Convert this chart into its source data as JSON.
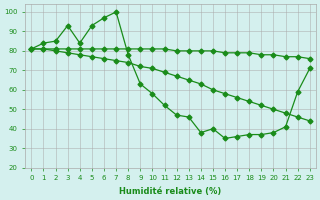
{
  "line1": [
    81,
    84,
    85,
    93,
    84,
    93,
    97,
    100,
    78,
    63,
    58,
    52,
    47,
    46,
    38,
    40,
    35,
    36,
    37,
    37,
    38,
    41,
    59,
    71
  ],
  "line2": [
    81,
    81,
    81,
    81,
    81,
    81,
    81,
    81,
    81,
    81,
    81,
    81,
    80,
    80,
    80,
    80,
    79,
    79,
    79,
    78,
    78,
    77,
    77,
    76
  ],
  "line3": [
    81,
    81,
    80,
    79,
    78,
    77,
    76,
    75,
    74,
    72,
    71,
    69,
    67,
    65,
    63,
    60,
    58,
    56,
    54,
    52,
    50,
    48,
    46,
    44
  ],
  "x": [
    0,
    1,
    2,
    3,
    4,
    5,
    6,
    7,
    8,
    9,
    10,
    11,
    12,
    13,
    14,
    15,
    16,
    17,
    18,
    19,
    20,
    21,
    22,
    23
  ],
  "line_color": "#1a8c1a",
  "bg_color": "#d4f0ee",
  "grid_color": "#aaaaaa",
  "xlabel": "Humidité relative (%)",
  "ylim": [
    20,
    104
  ],
  "xlim": [
    -0.5,
    23.5
  ],
  "yticks": [
    20,
    30,
    40,
    50,
    60,
    70,
    80,
    90,
    100
  ],
  "xticks": [
    0,
    1,
    2,
    3,
    4,
    5,
    6,
    7,
    8,
    9,
    10,
    11,
    12,
    13,
    14,
    15,
    16,
    17,
    18,
    19,
    20,
    21,
    22,
    23
  ]
}
